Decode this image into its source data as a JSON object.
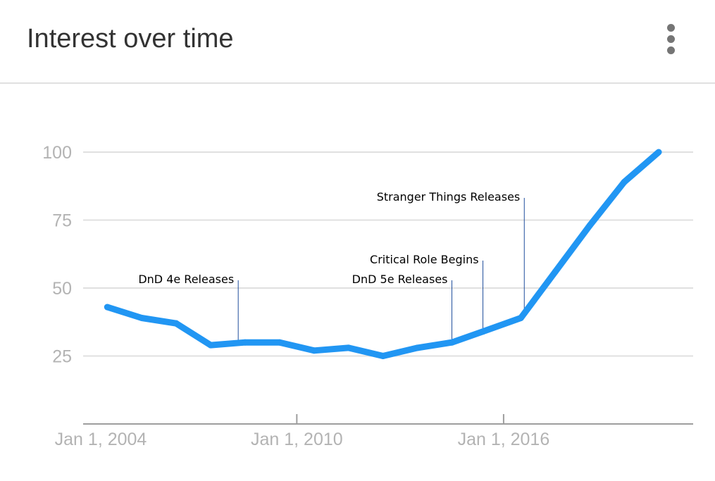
{
  "header": {
    "title": "Interest over time",
    "menu_icon": "more-vert-icon"
  },
  "colors": {
    "line": "#2196f3",
    "grid": "#e0e0e0",
    "axis": "#9e9e9e",
    "tick_text": "#b3b3b3",
    "annotation_line": "#1f4e9c",
    "annotation_text": "#000000"
  },
  "chart_data": {
    "type": "line",
    "title": "",
    "xlabel": "",
    "ylabel": "",
    "ylim": [
      0,
      100
    ],
    "xlim": [
      2003.8,
      2021.5
    ],
    "grid": true,
    "yticks": [
      25,
      50,
      75,
      100
    ],
    "ytick_labels": [
      "25",
      "50",
      "75",
      "100"
    ],
    "xticks": [
      2004,
      2010,
      2016
    ],
    "xtick_labels": [
      "Jan 1, 2004",
      "Jan 1, 2010",
      "Jan 1, 2016"
    ],
    "x": [
      2004.5,
      2005.5,
      2006.5,
      2007.5,
      2008.5,
      2009.5,
      2010.5,
      2011.5,
      2012.5,
      2013.5,
      2014.5,
      2015.4,
      2016.5,
      2017.5,
      2018.5,
      2019.5,
      2020.5
    ],
    "values": [
      43,
      39,
      37,
      29,
      30,
      30,
      27,
      28,
      25,
      28,
      30,
      34,
      39,
      56,
      73,
      89,
      100
    ],
    "annotations": [
      {
        "label": "DnD 4e Releases",
        "x": 2008.3
      },
      {
        "label": "DnD 5e Releases",
        "x": 2014.5
      },
      {
        "label": "Critical Role Begins",
        "x": 2015.4
      },
      {
        "label": "Stranger Things Releases",
        "x": 2016.6
      }
    ]
  }
}
